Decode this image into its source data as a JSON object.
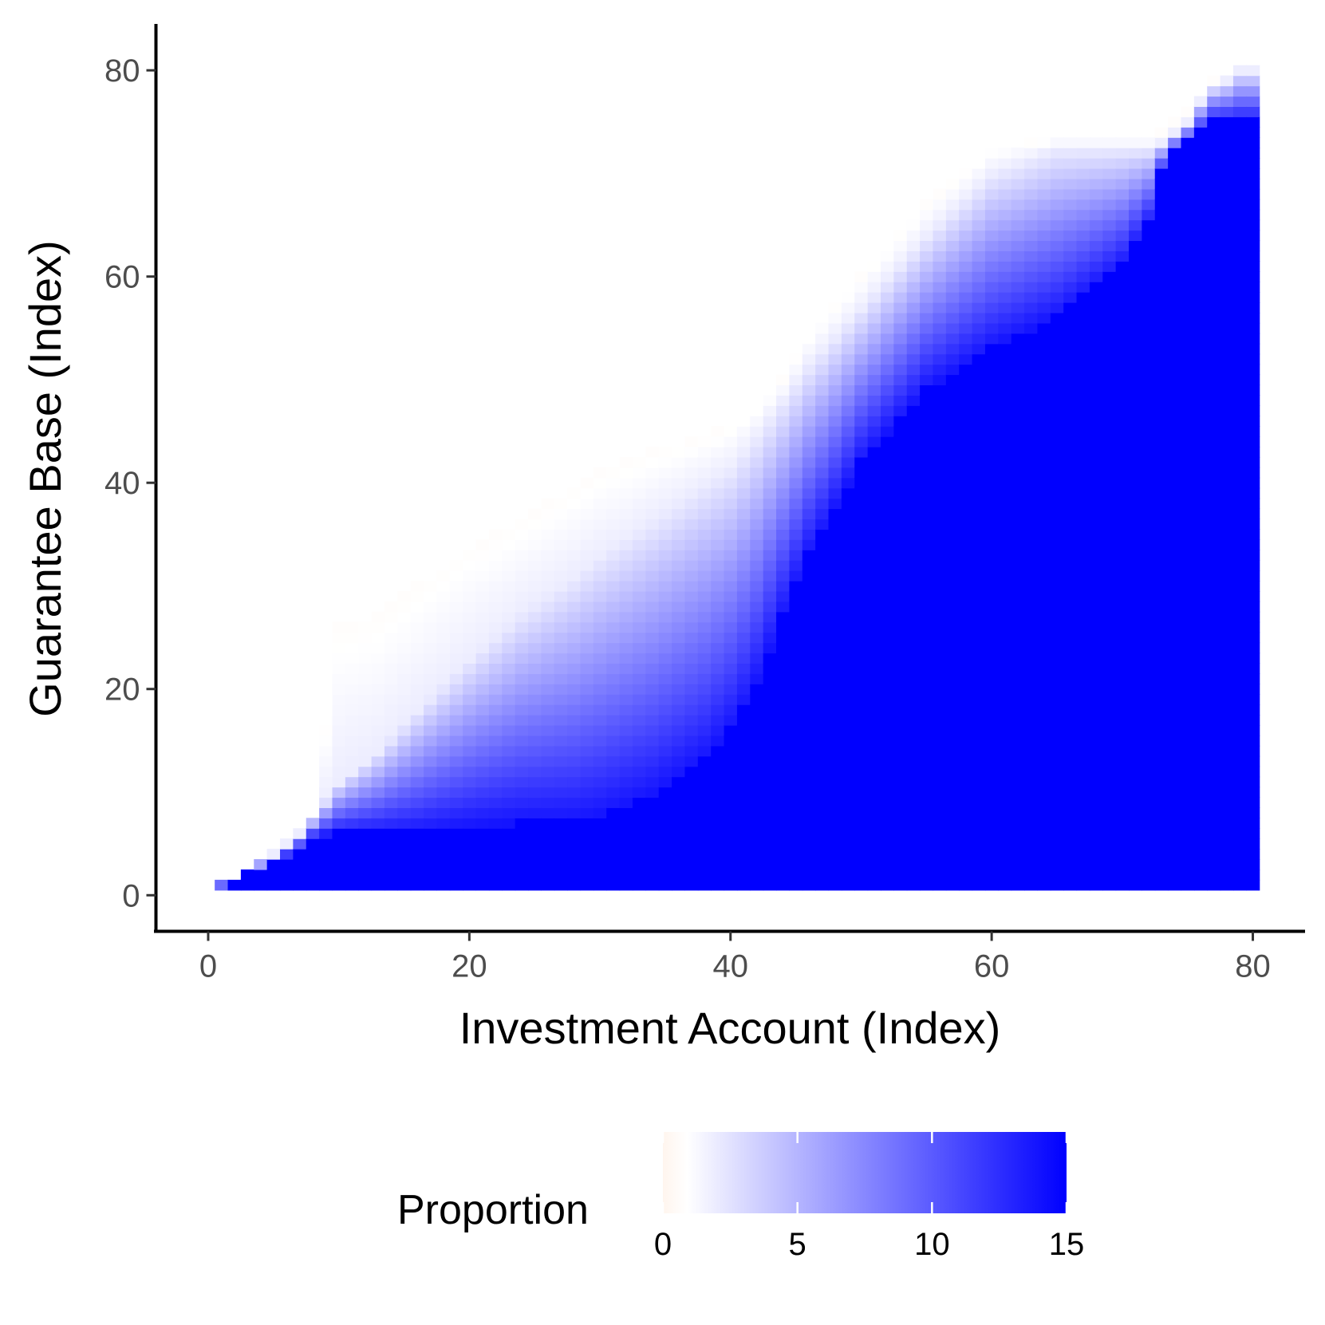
{
  "chart_data": {
    "type": "heatmap",
    "xlabel": "Investment Account (Index)",
    "ylabel": "Guarantee Base (Index)",
    "xlim": [
      -4,
      84
    ],
    "ylim": [
      -3.5,
      84.5
    ],
    "x_ticks": [
      0,
      20,
      40,
      60,
      80
    ],
    "y_ticks": [
      0,
      20,
      40,
      60,
      80
    ],
    "grid": false,
    "legend": {
      "title": "Proportion",
      "position": "bottom",
      "range": [
        0,
        15
      ],
      "ticks": [
        0,
        5,
        10,
        15
      ],
      "colors": [
        "#fff5ee",
        "#ffffff",
        "#0000ff"
      ]
    },
    "x_range": [
      1,
      80
    ],
    "boundaries": {
      "x": [
        1,
        2,
        3,
        5,
        7,
        8,
        10,
        13,
        16,
        20,
        24,
        28,
        30,
        34,
        38,
        40,
        41,
        42,
        44,
        46,
        50,
        55,
        60,
        65,
        70,
        72,
        73,
        74,
        75,
        76,
        77,
        78,
        79,
        80
      ],
      "top": [
        1,
        1.5,
        2.5,
        4,
        6,
        7.5,
        26,
        27,
        30,
        33.5,
        36.5,
        39.5,
        41,
        43,
        44.5,
        45.5,
        46.5,
        47.5,
        50,
        54.5,
        60,
        67,
        72.5,
        73.5,
        73.5,
        73.5,
        74,
        75,
        76,
        77.5,
        79,
        79.5,
        80,
        80
      ],
      "visible": [
        1,
        1.5,
        2.5,
        4,
        6,
        7.5,
        11,
        14,
        18,
        23,
        27.5,
        31,
        33,
        36.5,
        40,
        41.5,
        43,
        44.5,
        48,
        51.5,
        57,
        64,
        70,
        72.5,
        72.5,
        72.5,
        73,
        74,
        75,
        77,
        78.5,
        79,
        80,
        80
      ],
      "saturated": [
        0.8,
        1,
        2,
        3,
        4.5,
        5.5,
        6,
        6,
        6,
        6.5,
        7,
        7,
        7.5,
        9.5,
        13,
        16,
        18,
        20.5,
        27,
        33,
        42,
        49,
        53,
        56,
        61,
        65,
        70,
        72,
        73,
        74,
        75,
        75,
        75,
        75
      ]
    }
  }
}
